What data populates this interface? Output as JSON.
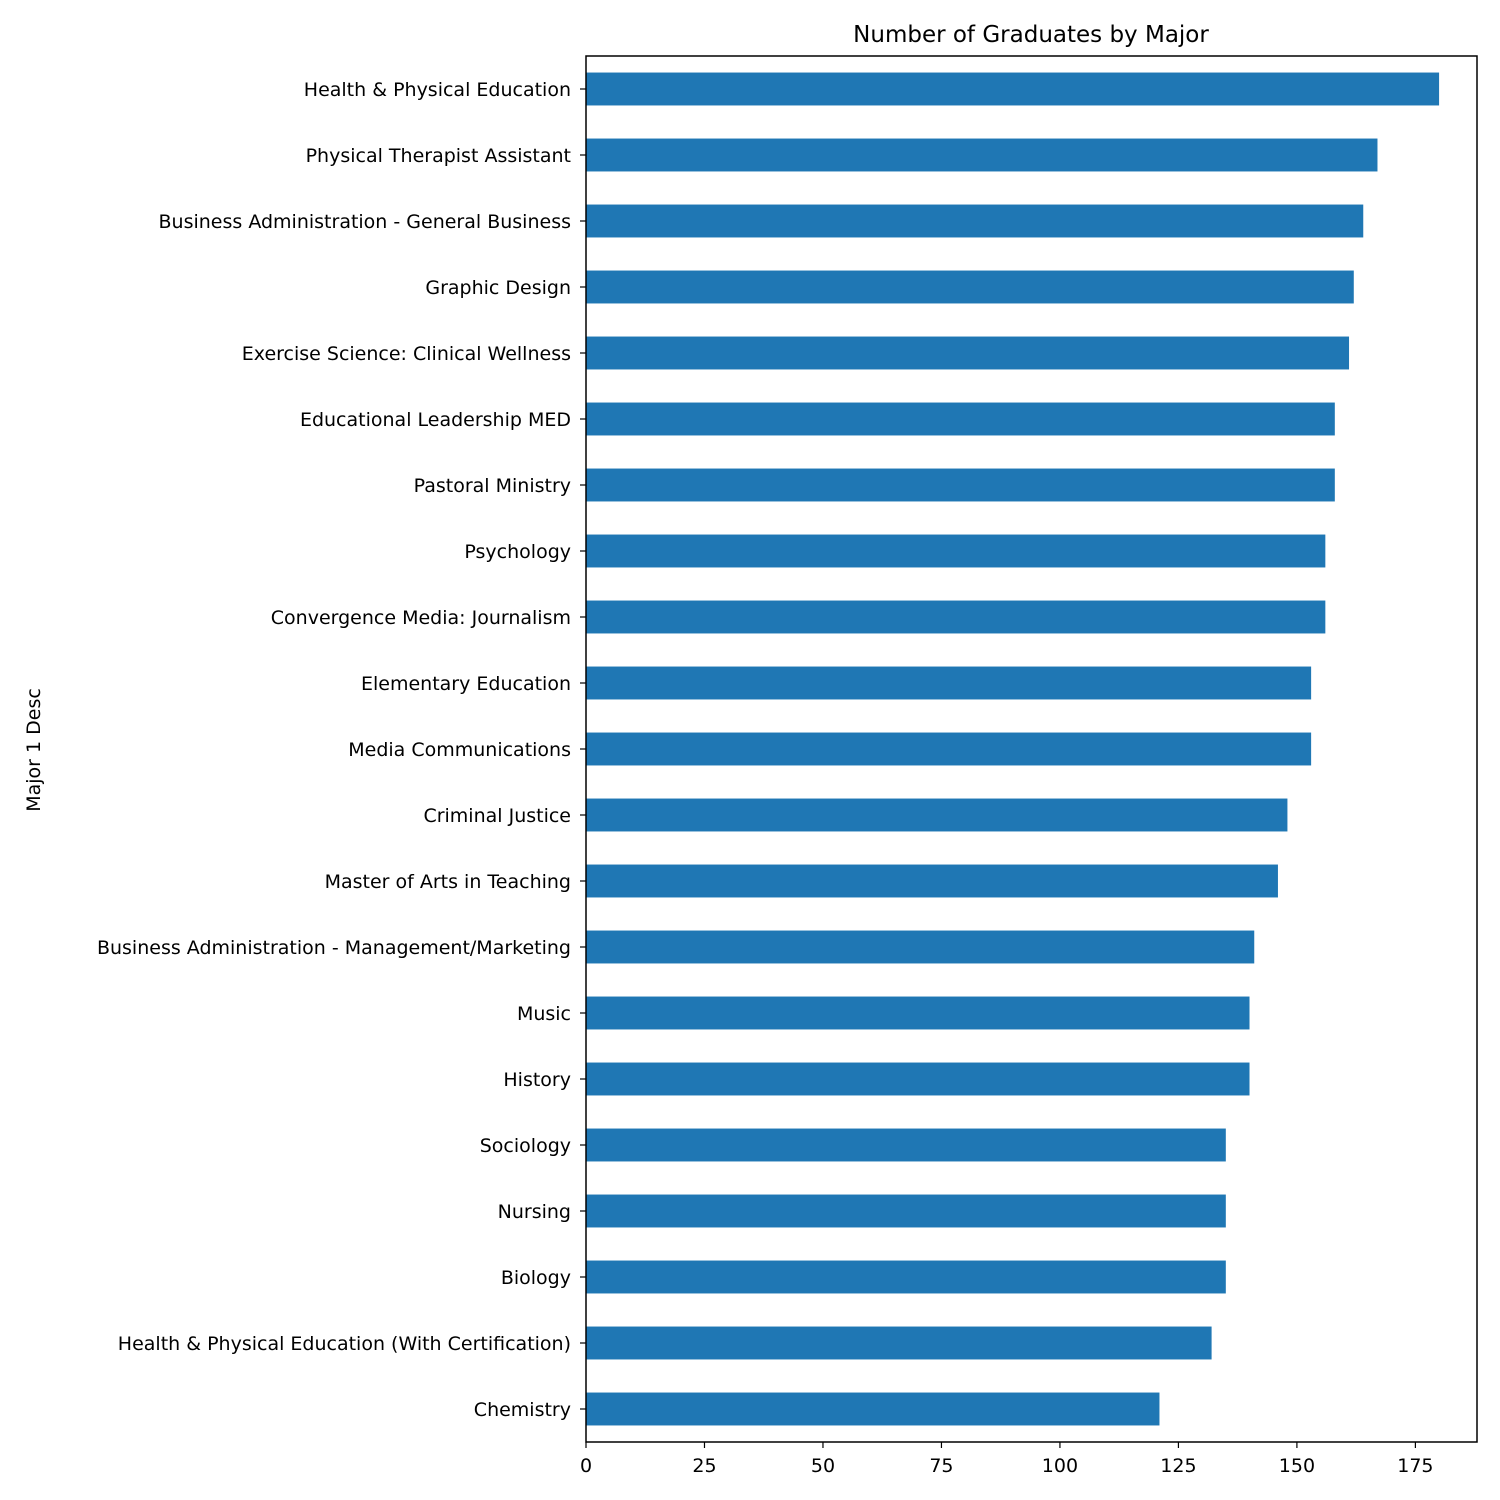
{
  "chart_data": {
    "type": "bar",
    "orientation": "horizontal",
    "title": "Number of Graduates by Major",
    "xlabel": "",
    "ylabel": "Major 1 Desc",
    "xlim": [
      0,
      188
    ],
    "xticks": [
      0,
      25,
      50,
      75,
      100,
      125,
      150,
      175
    ],
    "grid": false,
    "legend": "none",
    "bar_color": "#1f77b4",
    "categories": [
      "Health & Physical Education",
      "Physical Therapist Assistant",
      "Business Administration - General Business",
      "Graphic Design",
      "Exercise Science: Clinical Wellness",
      "Educational Leadership MED",
      "Pastoral Ministry",
      "Psychology",
      "Convergence Media: Journalism",
      "Elementary Education",
      "Media Communications",
      "Criminal Justice",
      "Master of Arts in Teaching",
      "Business Administration - Management/Marketing",
      "Music",
      "History",
      "Sociology",
      "Nursing",
      "Biology",
      "Health & Physical Education (With Certification)",
      "Chemistry"
    ],
    "values": [
      180,
      167,
      164,
      162,
      161,
      158,
      158,
      156,
      156,
      153,
      153,
      148,
      146,
      141,
      140,
      140,
      135,
      135,
      135,
      132,
      121
    ]
  }
}
